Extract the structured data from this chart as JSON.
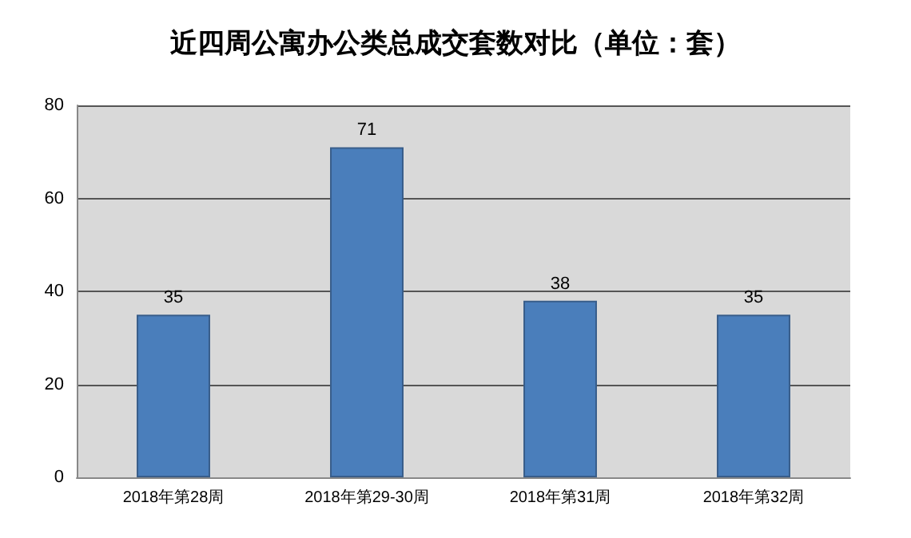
{
  "chart_data": {
    "type": "bar",
    "title": "近四周公寓办公类总成交套数对比（单位：套）",
    "categories": [
      "2018年第28周",
      "2018年第29-30周",
      "2018年第31周",
      "2018年第32周"
    ],
    "values": [
      35,
      71,
      38,
      35
    ],
    "color": "#4a7ebb",
    "ylim": [
      0,
      80
    ],
    "yticks": [
      0,
      20,
      40,
      60,
      80
    ],
    "grid": "y",
    "data_labels": true
  }
}
